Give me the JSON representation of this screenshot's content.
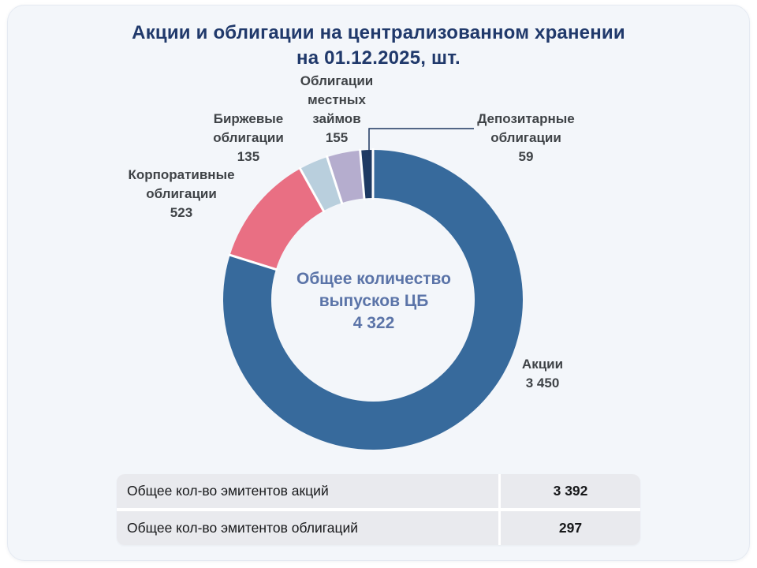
{
  "title": {
    "line1": "Акции и облигации на централизованном хранении",
    "line2": "на 01.12.2025, шт."
  },
  "chart_data": {
    "type": "pie",
    "variant": "donut",
    "title": "Акции и облигации на централизованном хранении на 01.12.2025, шт.",
    "total": 4322,
    "units": "шт.",
    "center_label": {
      "line1": "Общее количество",
      "line2": "выпусков ЦБ",
      "line3": "4 322"
    },
    "legend_position": "callouts",
    "grid": false,
    "segments": [
      {
        "name": "Акции",
        "value": 3450,
        "display": "3 450",
        "color": "#376A9C",
        "label_lines": [
          "Акции",
          "3 450"
        ]
      },
      {
        "name": "Корпоративные облигации",
        "value": 523,
        "display": "523",
        "color": "#E96F83",
        "label_lines": [
          "Корпоративные",
          "облигации",
          "523"
        ]
      },
      {
        "name": "Биржевые облигации",
        "value": 135,
        "display": "135",
        "color": "#B9CFDD",
        "label_lines": [
          "Биржевые",
          "облигации",
          "135"
        ]
      },
      {
        "name": "Облигации местных займов",
        "value": 155,
        "display": "155",
        "color": "#B5ADCE",
        "label_lines": [
          "Облигации",
          "местных",
          "займов",
          "155"
        ]
      },
      {
        "name": "Депозитарные облигации",
        "value": 59,
        "display": "59",
        "color": "#1E3A63",
        "label_lines": [
          "Депозитарные",
          "облигации",
          "59"
        ]
      }
    ]
  },
  "table": {
    "rows": [
      {
        "label": "Общее кол-во эмитентов акций",
        "value": "3 392"
      },
      {
        "label": "Общее кол-во эмитентов облигаций",
        "value": "297"
      }
    ]
  },
  "colors": {
    "page_bg": "#ffffff",
    "panel_bg": "#f3f6fa",
    "panel_border": "#e5eaf2",
    "title_text": "#20396b",
    "center_text": "#5b74a8",
    "label_text": "#3f4347",
    "connector": "#1d3760",
    "table_cell_bg": "#e9eaee",
    "table_text": "#17181a",
    "gap": "#ffffff"
  }
}
